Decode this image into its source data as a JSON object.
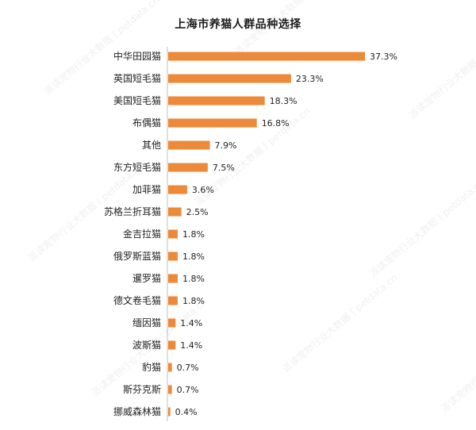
{
  "title": "上海市养猫人群品种选择",
  "watermark_text": "派读宠物行业大数据丨petdata.cn",
  "colors": {
    "bar": "#ed8a3a",
    "axis": "#bfbfbf",
    "text": "#1f1f1f"
  },
  "chart_data": {
    "type": "bar",
    "orientation": "horizontal",
    "title": "上海市养猫人群品种选择",
    "categories": [
      "中华田园猫",
      "英国短毛猫",
      "美国短毛猫",
      "布偶猫",
      "其他",
      "东方短毛猫",
      "加菲猫",
      "苏格兰折耳猫",
      "金吉拉猫",
      "俄罗斯蓝猫",
      "暹罗猫",
      "德文卷毛猫",
      "缅因猫",
      "波斯猫",
      "豹猫",
      "斯芬克斯",
      "挪威森林猫"
    ],
    "values": [
      37.3,
      23.3,
      18.3,
      16.8,
      7.9,
      7.5,
      3.6,
      2.5,
      1.8,
      1.8,
      1.8,
      1.8,
      1.4,
      1.4,
      0.7,
      0.7,
      0.4
    ],
    "value_labels": [
      "37.3%",
      "23.3%",
      "18.3%",
      "16.8%",
      "7.9%",
      "7.5%",
      "3.6%",
      "2.5%",
      "1.8%",
      "1.8%",
      "1.8%",
      "1.8%",
      "1.4%",
      "1.4%",
      "0.7%",
      "0.7%",
      "0.4%"
    ],
    "xlim": [
      0,
      37.3
    ],
    "grid": false,
    "legend": "none"
  }
}
